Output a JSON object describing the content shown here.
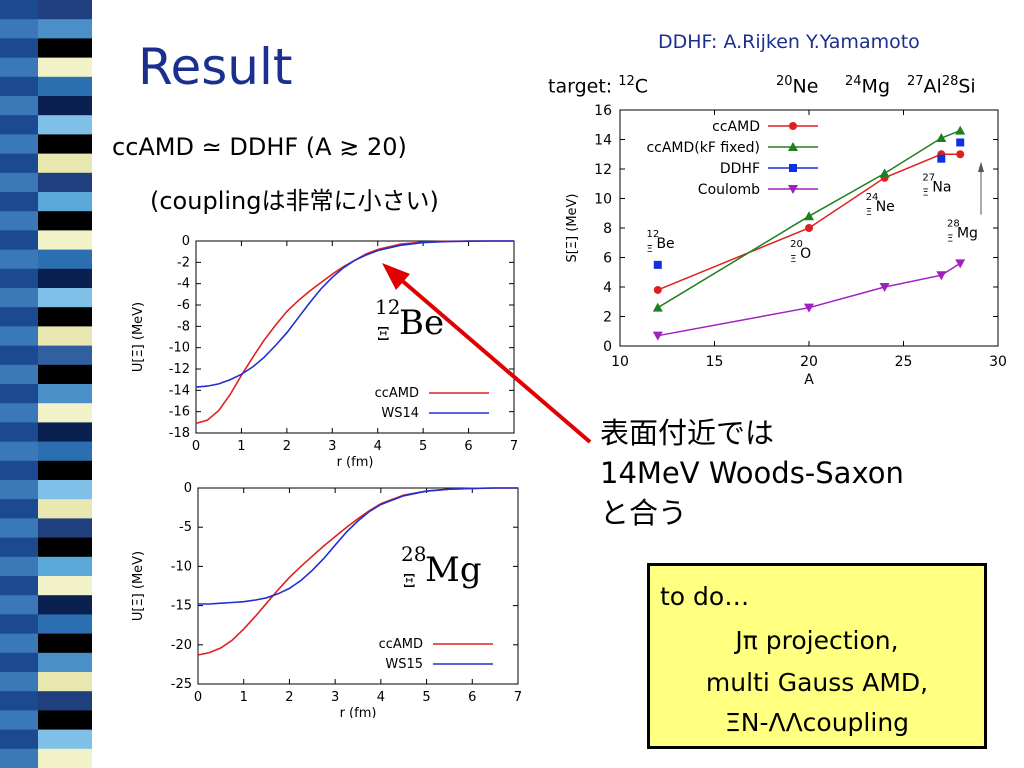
{
  "slide": {
    "title": "Result",
    "credit": "DDHF: A.Rijken Y.Yamamoto",
    "targets": {
      "prefix": "target: ",
      "items": [
        {
          "mass": "12",
          "sym": "C"
        },
        {
          "mass": "20",
          "sym": "Ne"
        },
        {
          "mass": "24",
          "sym": "Mg"
        },
        {
          "mass": "27",
          "sym": "Al"
        },
        {
          "mass": "28",
          "sym": "Si"
        }
      ]
    },
    "equation": "ccAMD ≃ DDHF (A ≳ 20)",
    "note": "(couplingは非常に小さい)",
    "callout": [
      "表面付近では",
      "14MeV Woods-Saxon",
      "と合う"
    ],
    "todo": {
      "head": "to do…",
      "items": [
        "Jπ projection,",
        "multi Gauss AMD,",
        "ΞN-ΛΛcoupling"
      ]
    },
    "colors": {
      "title": "#1a2f8f",
      "arrow": "#e00000",
      "todo_bg": "#ffff80"
    }
  },
  "chart_data": [
    {
      "type": "line",
      "xlabel": "r (fm)",
      "ylabel": "U[Ξ] (MeV)",
      "xlim": [
        0,
        7
      ],
      "ylim": [
        -18,
        0
      ],
      "xticks": [
        "0",
        "1",
        "2",
        "3",
        "4",
        "5",
        "6",
        "7"
      ],
      "yticks": [
        "0",
        "-2",
        "-4",
        "-6",
        "-8",
        "-10",
        "-12",
        "-14",
        "-16",
        "-18"
      ],
      "nucleus_label": {
        "mass": "12",
        "sub": "Ξ",
        "sym": "Be"
      },
      "legend_position": "lower-right",
      "series": [
        {
          "name": "ccAMD",
          "color": "#e02020",
          "x": [
            0,
            0.25,
            0.5,
            0.75,
            1,
            1.25,
            1.5,
            1.75,
            2,
            2.25,
            2.5,
            2.75,
            3,
            3.25,
            3.5,
            3.75,
            4,
            4.5,
            5,
            5.5,
            6,
            6.5,
            7
          ],
          "y": [
            -17.1,
            -16.8,
            -15.9,
            -14.4,
            -12.6,
            -10.9,
            -9.3,
            -7.9,
            -6.6,
            -5.6,
            -4.7,
            -3.9,
            -3.1,
            -2.4,
            -1.8,
            -1.2,
            -0.8,
            -0.3,
            -0.1,
            -0.03,
            0,
            0,
            0
          ]
        },
        {
          "name": "WS14",
          "color": "#2030d0",
          "x": [
            0,
            0.25,
            0.5,
            0.75,
            1,
            1.25,
            1.5,
            1.75,
            2,
            2.25,
            2.5,
            2.75,
            3,
            3.25,
            3.5,
            3.75,
            4,
            4.5,
            5,
            5.5,
            6,
            6.5,
            7
          ],
          "y": [
            -13.7,
            -13.6,
            -13.4,
            -13.0,
            -12.5,
            -11.8,
            -10.9,
            -9.8,
            -8.6,
            -7.2,
            -5.8,
            -4.5,
            -3.4,
            -2.5,
            -1.8,
            -1.3,
            -0.9,
            -0.4,
            -0.15,
            -0.06,
            -0.02,
            0,
            0
          ]
        }
      ]
    },
    {
      "type": "line",
      "xlabel": "r (fm)",
      "ylabel": "U[Ξ] (MeV)",
      "xlim": [
        0,
        7
      ],
      "ylim": [
        -25,
        0
      ],
      "xticks": [
        "0",
        "1",
        "2",
        "3",
        "4",
        "5",
        "6",
        "7"
      ],
      "yticks": [
        "0",
        "-5",
        "-10",
        "-15",
        "-20",
        "-25"
      ],
      "nucleus_label": {
        "mass": "28",
        "sub": "Ξ",
        "sym": "Mg"
      },
      "legend_position": "lower-right",
      "series": [
        {
          "name": "ccAMD",
          "color": "#e02020",
          "x": [
            0,
            0.25,
            0.5,
            0.75,
            1,
            1.25,
            1.5,
            1.75,
            2,
            2.25,
            2.5,
            2.75,
            3,
            3.25,
            3.5,
            3.75,
            4,
            4.5,
            5,
            5.5,
            6,
            6.5,
            7
          ],
          "y": [
            -21.3,
            -21.0,
            -20.4,
            -19.4,
            -18.0,
            -16.4,
            -14.7,
            -13.0,
            -11.4,
            -10.0,
            -8.7,
            -7.4,
            -6.2,
            -5.0,
            -3.9,
            -2.9,
            -2.0,
            -0.9,
            -0.4,
            -0.15,
            -0.05,
            0,
            0
          ]
        },
        {
          "name": "WS15",
          "color": "#2030d0",
          "x": [
            0,
            0.25,
            0.5,
            0.75,
            1,
            1.25,
            1.5,
            1.75,
            2,
            2.25,
            2.5,
            2.75,
            3,
            3.25,
            3.5,
            3.75,
            4,
            4.5,
            5,
            5.5,
            6,
            6.5,
            7
          ],
          "y": [
            -14.8,
            -14.8,
            -14.7,
            -14.6,
            -14.5,
            -14.3,
            -14.0,
            -13.5,
            -12.8,
            -11.8,
            -10.5,
            -9.0,
            -7.3,
            -5.6,
            -4.2,
            -3.0,
            -2.1,
            -1.0,
            -0.4,
            -0.15,
            -0.05,
            0,
            0
          ]
        }
      ]
    },
    {
      "type": "line",
      "xlabel": "A",
      "ylabel": "S[Ξ] (MeV)",
      "xlim": [
        10,
        30
      ],
      "ylim": [
        0,
        16
      ],
      "xticks": [
        "10",
        "15",
        "20",
        "25",
        "30"
      ],
      "yticks": [
        "0",
        "2",
        "4",
        "6",
        "8",
        "10",
        "12",
        "14",
        "16"
      ],
      "legend_position": "top-left",
      "annotations": [
        {
          "mass": "12",
          "sub": "Ξ",
          "sym": "Be",
          "x": 11.4,
          "y": 7.0
        },
        {
          "mass": "20",
          "sub": "Ξ",
          "sym": "O",
          "x": 19.0,
          "y": 6.3
        },
        {
          "mass": "24",
          "sub": "Ξ",
          "sym": "Ne",
          "x": 23.0,
          "y": 9.5
        },
        {
          "mass": "27",
          "sub": "Ξ",
          "sym": "Na",
          "x": 26.0,
          "y": 10.8
        },
        {
          "mass": "28",
          "sub": "Ξ",
          "sym": "Mg",
          "x": 27.3,
          "y": 7.7
        }
      ],
      "series": [
        {
          "name": "ccAMD",
          "color": "#e02020",
          "marker": "circle",
          "x": [
            12,
            20,
            24,
            27,
            28
          ],
          "y": [
            3.8,
            8.0,
            11.4,
            13.0,
            13.0
          ]
        },
        {
          "name": "ccAMD(kF fixed)",
          "color": "#208020",
          "marker": "triangle",
          "x": [
            12,
            20,
            24,
            27,
            28
          ],
          "y": [
            2.6,
            8.8,
            11.7,
            14.1,
            14.6
          ]
        },
        {
          "name": "DDHF",
          "color": "#1030e0",
          "marker": "square",
          "x": [
            12,
            27,
            28
          ],
          "y": [
            5.5,
            12.7,
            13.8
          ]
        },
        {
          "name": "Coulomb",
          "color": "#a020c0",
          "marker": "triangle-down",
          "x": [
            12,
            20,
            24,
            27,
            28
          ],
          "y": [
            0.7,
            2.6,
            4.0,
            4.8,
            5.6
          ]
        }
      ]
    }
  ]
}
